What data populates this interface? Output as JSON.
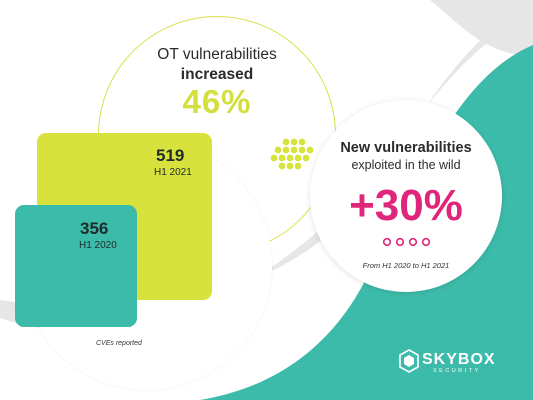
{
  "ot": {
    "title": "OT vulnerabilities",
    "subtitle": "increased",
    "percent": "46%"
  },
  "cve": {
    "h1_2021_value": "519",
    "h1_2021_label": "H1 2021",
    "h1_2020_value": "356",
    "h1_2020_label": "H1 2020",
    "caption": "CVEs reported"
  },
  "exploited": {
    "title": "New vulnerabilities",
    "subtitle": "exploited in the wild",
    "percent": "+30%",
    "period": "From H1 2020 to H1 2021"
  },
  "brand": {
    "name": "SKYBOX",
    "tagline": "SECURITY"
  },
  "colors": {
    "teal": "#3dbbaa",
    "lime": "#d7e23d",
    "magenta": "#e0267a",
    "gray_swoosh": "#e6e6e6"
  }
}
